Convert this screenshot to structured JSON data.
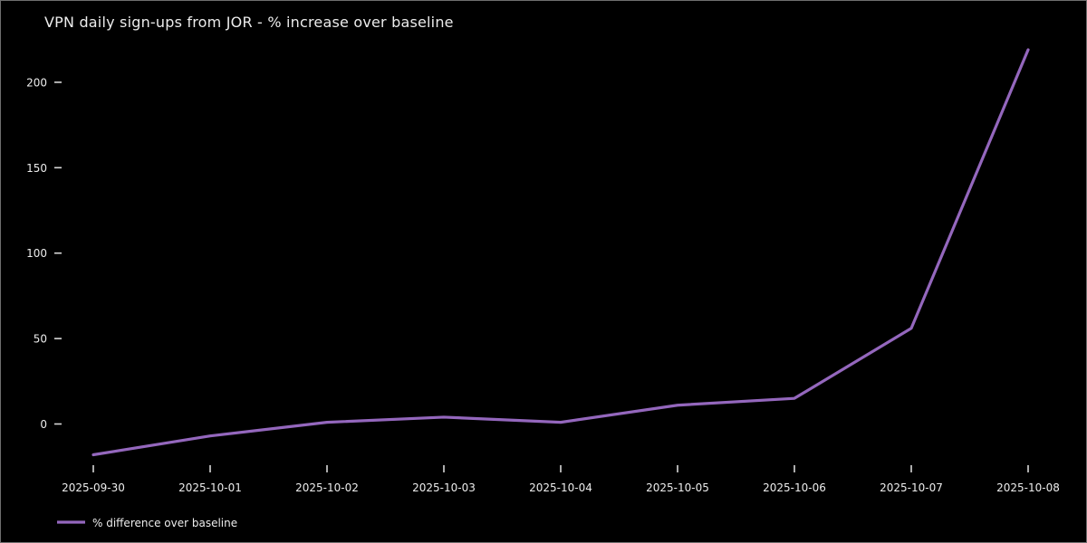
{
  "chart_data": {
    "type": "line",
    "title": "VPN daily sign-ups from JOR - % increase over baseline",
    "x": [
      "2025-09-30",
      "2025-10-01",
      "2025-10-02",
      "2025-10-03",
      "2025-10-04",
      "2025-10-05",
      "2025-10-06",
      "2025-10-07",
      "2025-10-08"
    ],
    "series": [
      {
        "name": "% difference over baseline",
        "values": [
          -18,
          -7,
          1,
          4,
          1,
          11,
          15,
          56,
          219
        ],
        "color": "#9467bd"
      }
    ],
    "xlabel": "",
    "ylabel": "",
    "yticks": [
      0,
      50,
      100,
      150,
      200
    ],
    "ylim": [
      -30,
      228
    ],
    "grid": false,
    "legend_position": "lower left",
    "background_color": "#000000",
    "text_color": "#ececec"
  }
}
